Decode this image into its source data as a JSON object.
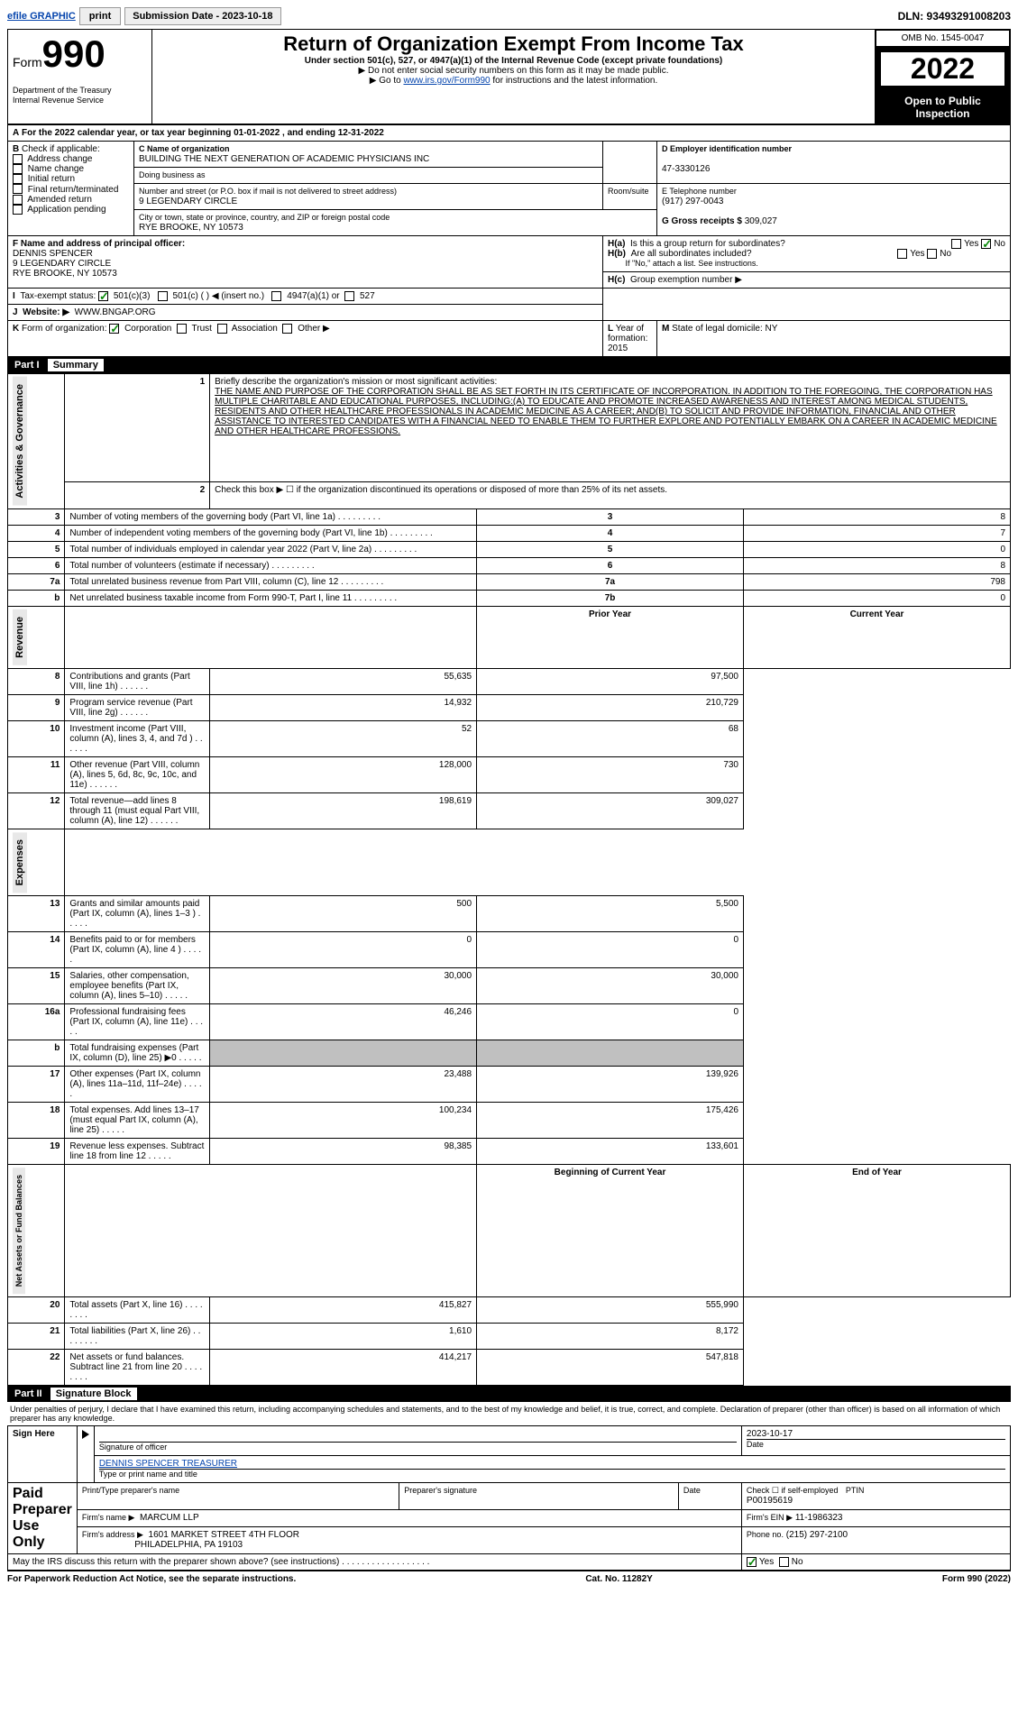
{
  "topbar": {
    "efile": "efile GRAPHIC",
    "print": "print",
    "subdate_label": "Submission Date - 2023-10-18",
    "dln": "DLN: 93493291008203"
  },
  "header": {
    "form_label": "Form",
    "form_num": "990",
    "title": "Return of Organization Exempt From Income Tax",
    "subtitle": "Under section 501(c), 527, or 4947(a)(1) of the Internal Revenue Code (except private foundations)",
    "instr1": "▶ Do not enter social security numbers on this form as it may be made public.",
    "instr2a": "▶ Go to ",
    "instr2_link": "www.irs.gov/Form990",
    "instr2b": " for instructions and the latest information.",
    "dept": "Department of the Treasury",
    "irs": "Internal Revenue Service",
    "omb": "OMB No. 1545-0047",
    "year": "2022",
    "open": "Open to Public Inspection"
  },
  "A": {
    "text": "For the 2022 calendar year, or tax year beginning 01-01-2022   , and ending 12-31-2022"
  },
  "B": {
    "label": "Check if applicable:",
    "items": [
      "Address change",
      "Name change",
      "Initial return",
      "Final return/terminated",
      "Amended return",
      "Application pending"
    ]
  },
  "C": {
    "name_label": "C Name of organization",
    "name": "BUILDING THE NEXT GENERATION OF ACADEMIC PHYSICIANS INC",
    "dba_label": "Doing business as",
    "addr_label": "Number and street (or P.O. box if mail is not delivered to street address)",
    "addr": "9 LEGENDARY CIRCLE",
    "room_label": "Room/suite",
    "city_label": "City or town, state or province, country, and ZIP or foreign postal code",
    "city": "RYE BROOKE, NY  10573"
  },
  "D": {
    "label": "D Employer identification number",
    "val": "47-3330126"
  },
  "E": {
    "label": "E Telephone number",
    "val": "(917) 297-0043"
  },
  "G": {
    "label": "G Gross receipts $",
    "val": "309,027"
  },
  "F": {
    "label": "F  Name and address of principal officer:",
    "name": "DENNIS SPENCER",
    "addr1": "9 LEGENDARY CIRCLE",
    "addr2": "RYE BROOKE, NY  10573"
  },
  "H": {
    "a": "Is this a group return for subordinates?",
    "b": "Are all subordinates included?",
    "note": "If \"No,\" attach a list. See instructions.",
    "c": "Group exemption number ▶",
    "yes": "Yes",
    "no": "No"
  },
  "I": {
    "label": "Tax-exempt status:",
    "opt1": "501(c)(3)",
    "opt2": "501(c) (   ) ◀ (insert no.)",
    "opt3": "4947(a)(1) or",
    "opt4": "527"
  },
  "J": {
    "label": "Website: ▶",
    "val": "WWW.BNGAP.ORG"
  },
  "K": {
    "label": "Form of organization:",
    "corp": "Corporation",
    "trust": "Trust",
    "assoc": "Association",
    "other": "Other ▶"
  },
  "L": {
    "label": "Year of formation:",
    "val": "2015"
  },
  "M": {
    "label": "State of legal domicile:",
    "val": "NY"
  },
  "part1": {
    "title": "Part I",
    "summary": "Summary",
    "section_ag": "Activities & Governance",
    "section_rev": "Revenue",
    "section_exp": "Expenses",
    "section_net": "Net Assets or Fund Balances",
    "l1_label": "Briefly describe the organization's mission or most significant activities:",
    "l1_text": "THE NAME AND PURPOSE OF THE CORPORATION SHALL BE AS SET FORTH IN ITS CERTIFICATE OF INCORPORATION. IN ADDITION TO THE FOREGOING, THE CORPORATION HAS MULTIPLE CHARITABLE AND EDUCATIONAL PURPOSES, INCLUDING:(A) TO EDUCATE AND PROMOTE INCREASED AWARENESS AND INTEREST AMONG MEDICAL STUDENTS, RESIDENTS AND OTHER HEALTHCARE PROFESSIONALS IN ACADEMIC MEDICINE AS A CAREER; AND(B) TO SOLICIT AND PROVIDE INFORMATION, FINANCIAL AND OTHER ASSISTANCE TO INTERESTED CANDIDATES WITH A FINANCIAL NEED TO ENABLE THEM TO FURTHER EXPLORE AND POTENTIALLY EMBARK ON A CAREER IN ACADEMIC MEDICINE AND OTHER HEALTHCARE PROFESSIONS.",
    "l2": "Check this box ▶ ☐  if the organization discontinued its operations or disposed of more than 25% of its net assets.",
    "rows_ag": [
      {
        "n": "3",
        "t": "Number of voting members of the governing body (Part VI, line 1a)",
        "box": "3",
        "v": "8"
      },
      {
        "n": "4",
        "t": "Number of independent voting members of the governing body (Part VI, line 1b)",
        "box": "4",
        "v": "7"
      },
      {
        "n": "5",
        "t": "Total number of individuals employed in calendar year 2022 (Part V, line 2a)",
        "box": "5",
        "v": "0"
      },
      {
        "n": "6",
        "t": "Total number of volunteers (estimate if necessary)",
        "box": "6",
        "v": "8"
      },
      {
        "n": "7a",
        "t": "Total unrelated business revenue from Part VIII, column (C), line 12",
        "box": "7a",
        "v": "798"
      },
      {
        "n": "b",
        "t": "Net unrelated business taxable income from Form 990-T, Part I, line 11",
        "box": "7b",
        "v": "0"
      }
    ],
    "col_prior": "Prior Year",
    "col_current": "Current Year",
    "rows_rev": [
      {
        "n": "8",
        "t": "Contributions and grants (Part VIII, line 1h)",
        "p": "55,635",
        "c": "97,500"
      },
      {
        "n": "9",
        "t": "Program service revenue (Part VIII, line 2g)",
        "p": "14,932",
        "c": "210,729"
      },
      {
        "n": "10",
        "t": "Investment income (Part VIII, column (A), lines 3, 4, and 7d )",
        "p": "52",
        "c": "68"
      },
      {
        "n": "11",
        "t": "Other revenue (Part VIII, column (A), lines 5, 6d, 8c, 9c, 10c, and 11e)",
        "p": "128,000",
        "c": "730"
      },
      {
        "n": "12",
        "t": "Total revenue—add lines 8 through 11 (must equal Part VIII, column (A), line 12)",
        "p": "198,619",
        "c": "309,027"
      }
    ],
    "rows_exp": [
      {
        "n": "13",
        "t": "Grants and similar amounts paid (Part IX, column (A), lines 1–3 )",
        "p": "500",
        "c": "5,500"
      },
      {
        "n": "14",
        "t": "Benefits paid to or for members (Part IX, column (A), line 4 )",
        "p": "0",
        "c": "0"
      },
      {
        "n": "15",
        "t": "Salaries, other compensation, employee benefits (Part IX, column (A), lines 5–10)",
        "p": "30,000",
        "c": "30,000"
      },
      {
        "n": "16a",
        "t": "Professional fundraising fees (Part IX, column (A), line 11e)",
        "p": "46,246",
        "c": "0"
      },
      {
        "n": "b",
        "t": "Total fundraising expenses (Part IX, column (D), line 25) ▶0",
        "p": "",
        "c": "",
        "shade": true
      },
      {
        "n": "17",
        "t": "Other expenses (Part IX, column (A), lines 11a–11d, 11f–24e)",
        "p": "23,488",
        "c": "139,926"
      },
      {
        "n": "18",
        "t": "Total expenses. Add lines 13–17 (must equal Part IX, column (A), line 25)",
        "p": "100,234",
        "c": "175,426"
      },
      {
        "n": "19",
        "t": "Revenue less expenses. Subtract line 18 from line 12",
        "p": "98,385",
        "c": "133,601"
      }
    ],
    "col_begin": "Beginning of Current Year",
    "col_end": "End of Year",
    "rows_net": [
      {
        "n": "20",
        "t": "Total assets (Part X, line 16)",
        "p": "415,827",
        "c": "555,990"
      },
      {
        "n": "21",
        "t": "Total liabilities (Part X, line 26)",
        "p": "1,610",
        "c": "8,172"
      },
      {
        "n": "22",
        "t": "Net assets or fund balances. Subtract line 21 from line 20",
        "p": "414,217",
        "c": "547,818"
      }
    ]
  },
  "part2": {
    "title": "Part II",
    "label": "Signature Block",
    "penalty": "Under penalties of perjury, I declare that I have examined this return, including accompanying schedules and statements, and to the best of my knowledge and belief, it is true, correct, and complete. Declaration of preparer (other than officer) is based on all information of which preparer has any knowledge.",
    "sign_here": "Sign Here",
    "sig_officer": "Signature of officer",
    "sig_date": "Date",
    "sig_date_val": "2023-10-17",
    "officer_name": "DENNIS SPENCER TREASURER",
    "type_name": "Type or print name and title",
    "paid": "Paid Preparer Use Only",
    "prep_name_label": "Print/Type preparer's name",
    "prep_sig_label": "Preparer's signature",
    "date_label": "Date",
    "check_self": "Check ☐ if self-employed",
    "ptin_label": "PTIN",
    "ptin": "P00195619",
    "firm_name_label": "Firm's name    ▶",
    "firm_name": "MARCUM LLP",
    "firm_ein_label": "Firm's EIN ▶",
    "firm_ein": "11-1986323",
    "firm_addr_label": "Firm's address ▶",
    "firm_addr": "1601 MARKET STREET 4TH FLOOR",
    "firm_city": "PHILADELPHIA, PA  19103",
    "phone_label": "Phone no.",
    "phone": "(215) 297-2100",
    "discuss": "May the IRS discuss this return with the preparer shown above? (see instructions)",
    "yes": "Yes",
    "no": "No"
  },
  "footer": {
    "paperwork": "For Paperwork Reduction Act Notice, see the separate instructions.",
    "cat": "Cat. No. 11282Y",
    "form": "Form 990 (2022)"
  }
}
